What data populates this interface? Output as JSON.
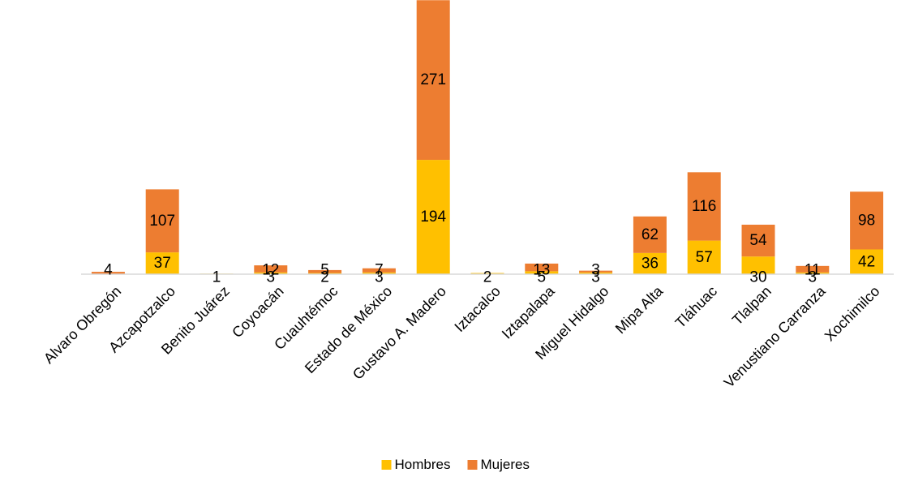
{
  "chart_data": {
    "type": "bar",
    "stacked": true,
    "categories": [
      "Alvaro Obregón",
      "Azcapotzalco",
      "Benito Juárez",
      "Coyoacán",
      "Cuauhtémoc",
      "Estado de México",
      "Gustavo A. Madero",
      "Iztacalco",
      "Iztapalapa",
      "Miguel Hidalgo",
      "Mipa Alta",
      "Tláhuac",
      "Tlalpan",
      "Venustiano Carranza",
      "Xochimilco"
    ],
    "series": [
      {
        "name": "Hombres",
        "color": "#FFC000",
        "values": [
          0,
          37,
          1,
          3,
          2,
          3,
          194,
          2,
          5,
          3,
          36,
          57,
          30,
          3,
          42
        ]
      },
      {
        "name": "Mujeres",
        "color": "#ED7D31",
        "values": [
          4,
          107,
          0,
          12,
          5,
          7,
          271,
          0,
          13,
          3,
          62,
          116,
          54,
          11,
          98
        ]
      }
    ],
    "legend": {
      "position": "bottom"
    },
    "grid": false
  }
}
